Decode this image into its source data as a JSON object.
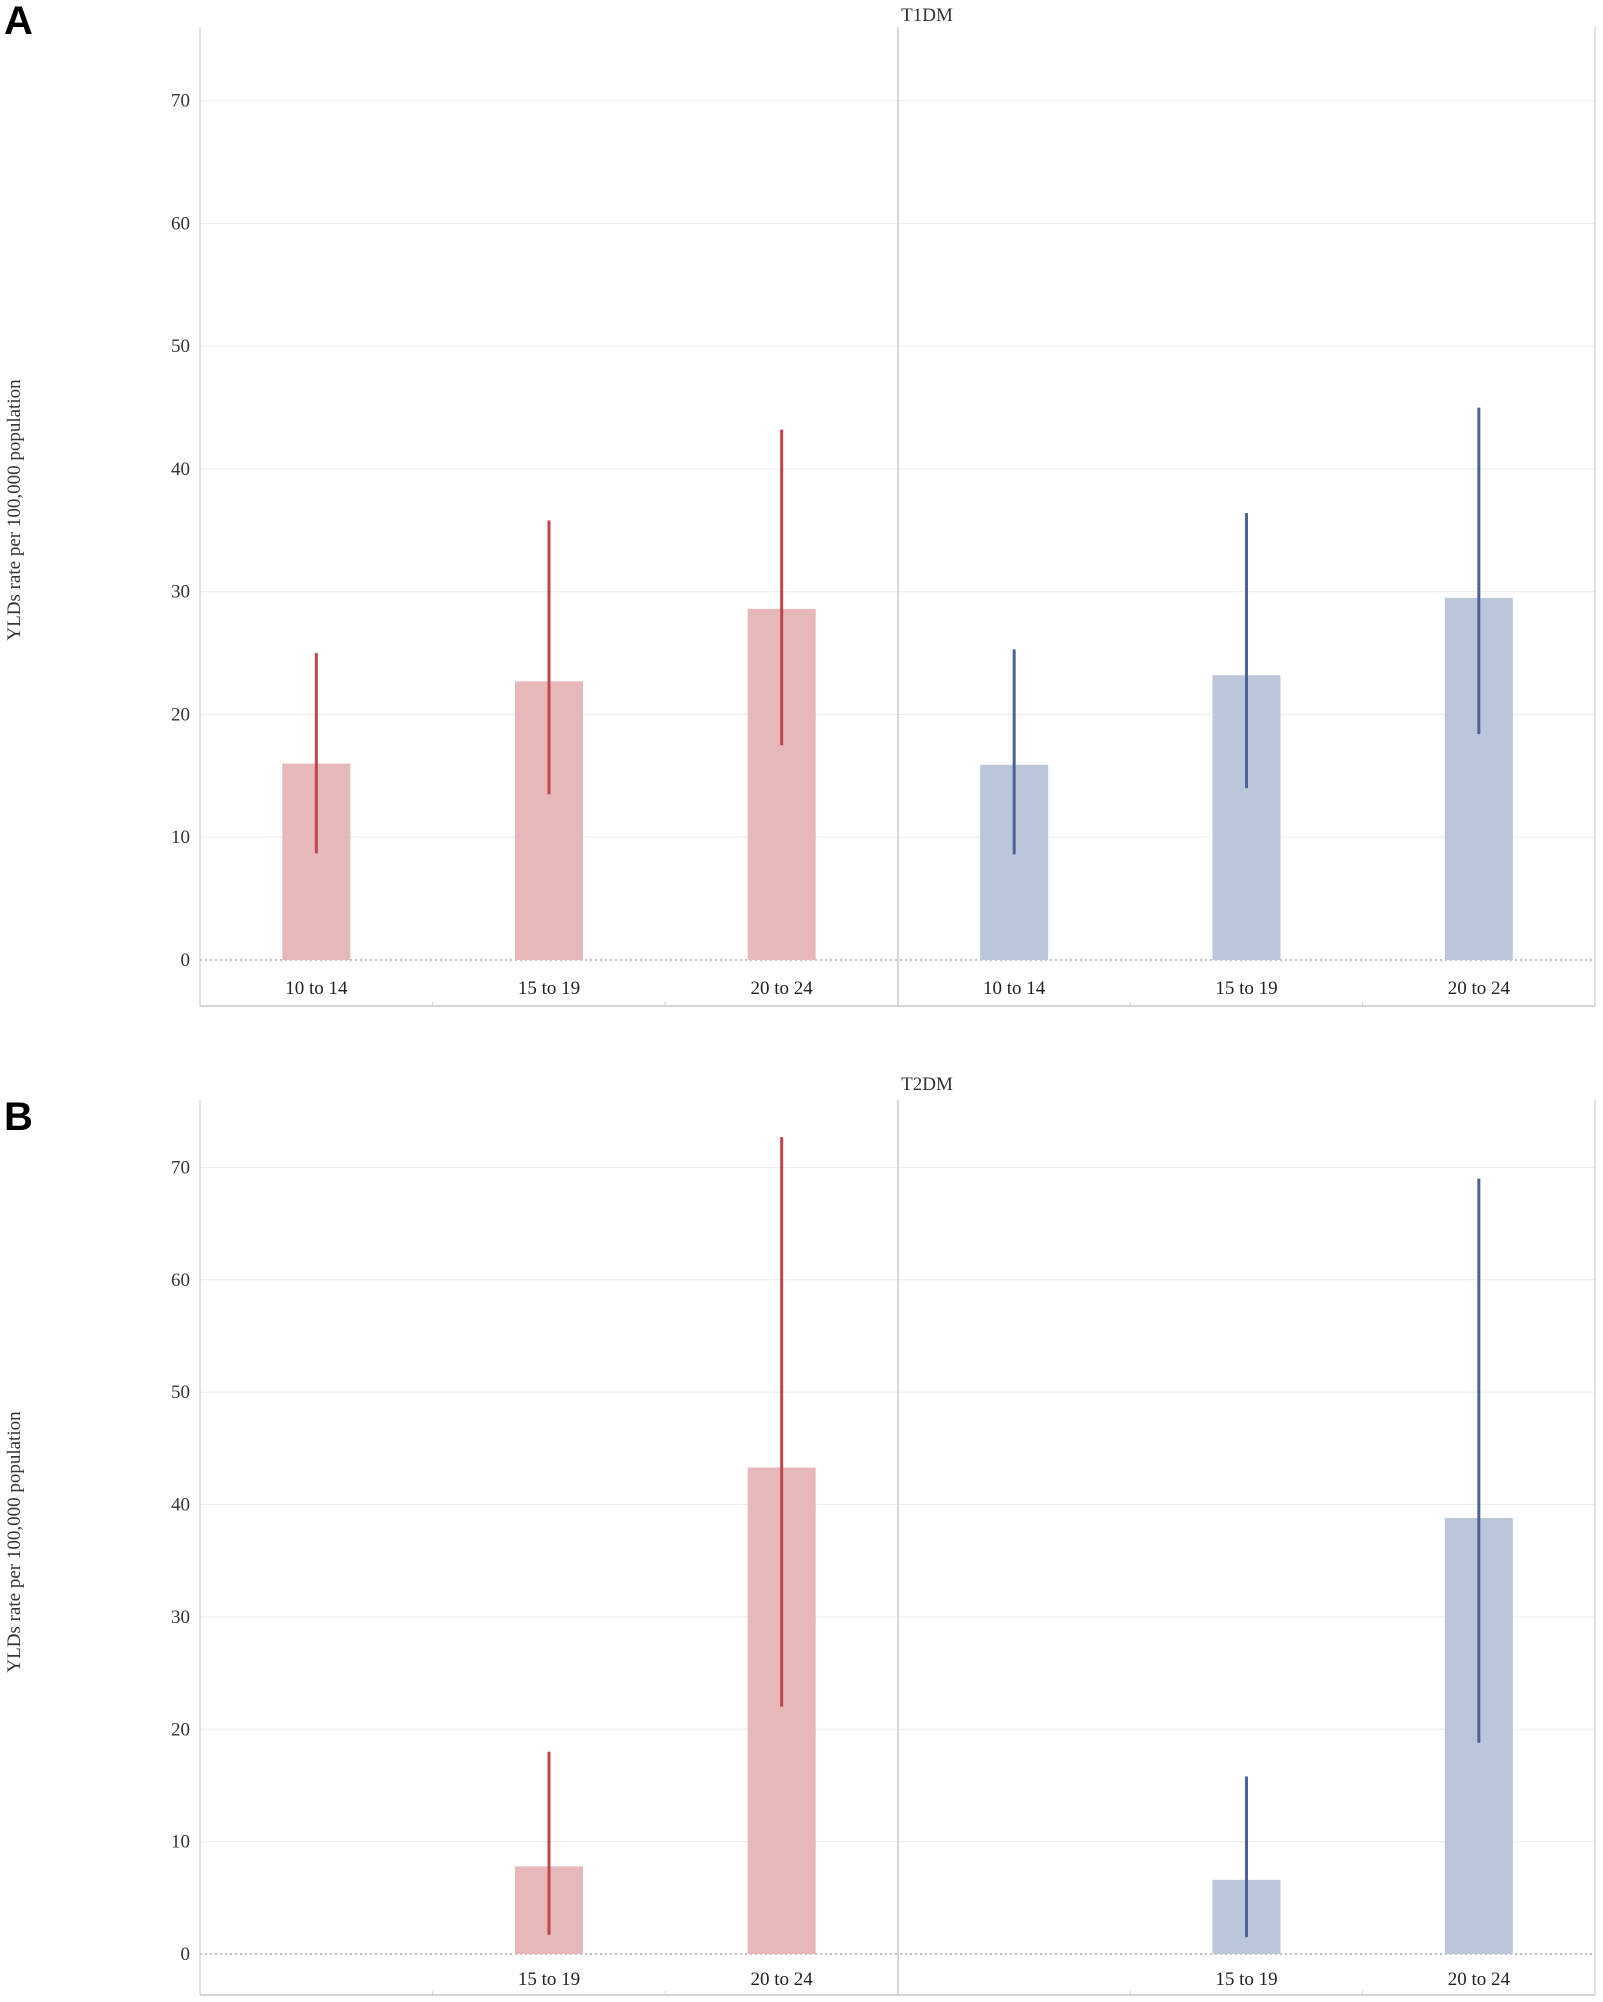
{
  "chart_data": [
    {
      "type": "bar",
      "panel_label": "A",
      "title": "T1DM",
      "ylabel": "YLDs rate per 100,000 population",
      "xlabel": "",
      "ylim": [
        0,
        76
      ],
      "yticks": [
        0,
        10,
        20,
        30,
        40,
        50,
        60,
        70
      ],
      "grid": true,
      "facets": [
        {
          "color": "#c0464b",
          "bar_color": "#e6b8ba",
          "categories": [
            "10 to 14",
            "15 to 19",
            "20 to 24"
          ],
          "values": [
            16.0,
            22.7,
            28.6
          ],
          "lower": [
            8.7,
            13.5,
            17.5
          ],
          "upper": [
            25.0,
            35.8,
            43.2
          ]
        },
        {
          "color": "#4a6594",
          "bar_color": "#bac7da",
          "categories": [
            "10 to 14",
            "15 to 19",
            "20 to 24"
          ],
          "values": [
            15.9,
            23.2,
            29.5
          ],
          "lower": [
            8.6,
            14.0,
            18.4
          ],
          "upper": [
            25.3,
            36.4,
            45.0
          ]
        }
      ]
    },
    {
      "type": "bar",
      "panel_label": "B",
      "title": "T2DM",
      "ylabel": "YLDs rate per 100,000 population",
      "xlabel": "",
      "ylim": [
        0,
        76
      ],
      "yticks": [
        0,
        10,
        20,
        30,
        40,
        50,
        60,
        70
      ],
      "grid": true,
      "facets": [
        {
          "color": "#c0464b",
          "bar_color": "#e6b8ba",
          "categories": [
            "",
            "15 to 19",
            "20 to 24"
          ],
          "values": [
            null,
            7.8,
            43.3
          ],
          "lower": [
            null,
            1.7,
            22.0
          ],
          "upper": [
            null,
            18.0,
            72.7
          ]
        },
        {
          "color": "#4a6594",
          "bar_color": "#bac7da",
          "categories": [
            "",
            "15 to 19",
            "20 to 24"
          ],
          "values": [
            null,
            6.6,
            38.8
          ],
          "lower": [
            null,
            1.5,
            18.8
          ],
          "upper": [
            null,
            15.8,
            69.0
          ]
        }
      ]
    }
  ]
}
